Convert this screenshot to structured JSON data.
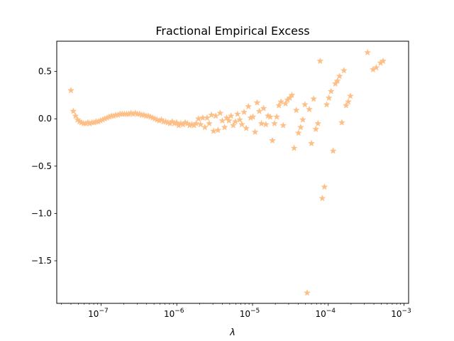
{
  "chart_data": {
    "type": "scatter",
    "title": "Fractional Empirical Excess",
    "xlabel": "λ",
    "ylabel": "",
    "xscale": "log",
    "xlim": [
      2.6e-08,
      0.00115
    ],
    "ylim": [
      -1.95,
      0.82
    ],
    "grid": false,
    "marker": "star",
    "color": "#fdbf86",
    "xticks": [
      {
        "value": 1e-07,
        "label": "10",
        "exp": "−7"
      },
      {
        "value": 1e-06,
        "label": "10",
        "exp": "−6"
      },
      {
        "value": 1e-05,
        "label": "10",
        "exp": "−5"
      },
      {
        "value": 0.0001,
        "label": "10",
        "exp": "−4"
      },
      {
        "value": 0.001,
        "label": "10",
        "exp": "−3"
      }
    ],
    "yticks": [
      {
        "value": 0.5,
        "label": "0.5"
      },
      {
        "value": 0.0,
        "label": "0.0"
      },
      {
        "value": -0.5,
        "label": "−0.5"
      },
      {
        "value": -1.0,
        "label": "−1.0"
      },
      {
        "value": -1.5,
        "label": "−1.5"
      }
    ],
    "points": [
      {
        "x": 4e-08,
        "y": 0.3
      },
      {
        "x": 4.3e-08,
        "y": 0.08
      },
      {
        "x": 4.6e-08,
        "y": 0.03
      },
      {
        "x": 4.9e-08,
        "y": -0.01
      },
      {
        "x": 5.2e-08,
        "y": -0.03
      },
      {
        "x": 5.5e-08,
        "y": -0.04
      },
      {
        "x": 5.9e-08,
        "y": -0.05
      },
      {
        "x": 6.3e-08,
        "y": -0.05
      },
      {
        "x": 6.7e-08,
        "y": -0.04
      },
      {
        "x": 7.1e-08,
        "y": -0.05
      },
      {
        "x": 7.6e-08,
        "y": -0.04
      },
      {
        "x": 8.1e-08,
        "y": -0.04
      },
      {
        "x": 8.6e-08,
        "y": -0.03
      },
      {
        "x": 9.2e-08,
        "y": -0.03
      },
      {
        "x": 9.8e-08,
        "y": -0.02
      },
      {
        "x": 1.05e-07,
        "y": -0.01
      },
      {
        "x": 1.12e-07,
        "y": 0.0
      },
      {
        "x": 1.2e-07,
        "y": 0.01
      },
      {
        "x": 1.28e-07,
        "y": 0.02
      },
      {
        "x": 1.37e-07,
        "y": 0.03
      },
      {
        "x": 1.46e-07,
        "y": 0.03
      },
      {
        "x": 1.56e-07,
        "y": 0.04
      },
      {
        "x": 1.67e-07,
        "y": 0.04
      },
      {
        "x": 1.78e-07,
        "y": 0.05
      },
      {
        "x": 1.9e-07,
        "y": 0.05
      },
      {
        "x": 2.03e-07,
        "y": 0.05
      },
      {
        "x": 2.17e-07,
        "y": 0.05
      },
      {
        "x": 2.32e-07,
        "y": 0.05
      },
      {
        "x": 2.48e-07,
        "y": 0.06
      },
      {
        "x": 2.65e-07,
        "y": 0.05
      },
      {
        "x": 2.83e-07,
        "y": 0.06
      },
      {
        "x": 3.02e-07,
        "y": 0.05
      },
      {
        "x": 3.23e-07,
        "y": 0.05
      },
      {
        "x": 3.45e-07,
        "y": 0.04
      },
      {
        "x": 3.68e-07,
        "y": 0.04
      },
      {
        "x": 3.93e-07,
        "y": 0.03
      },
      {
        "x": 4.2e-07,
        "y": 0.03
      },
      {
        "x": 4.49e-07,
        "y": 0.02
      },
      {
        "x": 4.8e-07,
        "y": 0.01
      },
      {
        "x": 5.13e-07,
        "y": 0.0
      },
      {
        "x": 5.48e-07,
        "y": -0.01
      },
      {
        "x": 5.85e-07,
        "y": -0.02
      },
      {
        "x": 6.25e-07,
        "y": -0.01
      },
      {
        "x": 6.68e-07,
        "y": -0.03
      },
      {
        "x": 7.14e-07,
        "y": -0.03
      },
      {
        "x": 7.62e-07,
        "y": -0.04
      },
      {
        "x": 8.14e-07,
        "y": -0.05
      },
      {
        "x": 8.7e-07,
        "y": -0.03
      },
      {
        "x": 9.3e-07,
        "y": -0.05
      },
      {
        "x": 9.93e-07,
        "y": -0.04
      },
      {
        "x": 1.06e-06,
        "y": -0.07
      },
      {
        "x": 1.13e-06,
        "y": -0.05
      },
      {
        "x": 1.21e-06,
        "y": -0.06
      },
      {
        "x": 1.29e-06,
        "y": -0.04
      },
      {
        "x": 1.38e-06,
        "y": -0.05
      },
      {
        "x": 1.48e-06,
        "y": -0.07
      },
      {
        "x": 1.58e-06,
        "y": -0.06
      },
      {
        "x": 1.69e-06,
        "y": -0.07
      },
      {
        "x": 1.8e-06,
        "y": -0.05
      },
      {
        "x": 1.93e-06,
        "y": 0.0
      },
      {
        "x": 2.06e-06,
        "y": -0.06
      },
      {
        "x": 2.2e-06,
        "y": 0.01
      },
      {
        "x": 2.35e-06,
        "y": -0.09
      },
      {
        "x": 2.51e-06,
        "y": 0.01
      },
      {
        "x": 2.68e-06,
        "y": -0.05
      },
      {
        "x": 2.87e-06,
        "y": 0.04
      },
      {
        "x": 3.06e-06,
        "y": -0.13
      },
      {
        "x": 3.27e-06,
        "y": 0.03
      },
      {
        "x": 3.5e-06,
        "y": -0.12
      },
      {
        "x": 3.74e-06,
        "y": 0.06
      },
      {
        "x": 3.99e-06,
        "y": -0.02
      },
      {
        "x": 4.27e-06,
        "y": -0.09
      },
      {
        "x": 4.56e-06,
        "y": 0.01
      },
      {
        "x": 4.87e-06,
        "y": -0.02
      },
      {
        "x": 5.2e-06,
        "y": 0.03
      },
      {
        "x": 5.56e-06,
        "y": -0.07
      },
      {
        "x": 5.94e-06,
        "y": -0.03
      },
      {
        "x": 6.34e-06,
        "y": 0.05
      },
      {
        "x": 6.78e-06,
        "y": -0.01
      },
      {
        "x": 7.24e-06,
        "y": -0.06
      },
      {
        "x": 7.73e-06,
        "y": 0.07
      },
      {
        "x": 8.26e-06,
        "y": -0.1
      },
      {
        "x": 8.82e-06,
        "y": 0.13
      },
      {
        "x": 9.43e-06,
        "y": 0.01
      },
      {
        "x": 1.01e-05,
        "y": 0.02
      },
      {
        "x": 1.08e-05,
        "y": -0.14
      },
      {
        "x": 1.15e-05,
        "y": 0.17
      },
      {
        "x": 1.23e-05,
        "y": 0.08
      },
      {
        "x": 1.31e-05,
        "y": -0.05
      },
      {
        "x": 1.4e-05,
        "y": 0.11
      },
      {
        "x": 1.5e-05,
        "y": -0.06
      },
      {
        "x": 1.6e-05,
        "y": 0.03
      },
      {
        "x": 1.71e-05,
        "y": 0.02
      },
      {
        "x": 1.83e-05,
        "y": -0.23
      },
      {
        "x": 1.95e-05,
        "y": -0.05
      },
      {
        "x": 2.09e-05,
        "y": 0.02
      },
      {
        "x": 2.23e-05,
        "y": 0.14
      },
      {
        "x": 2.38e-05,
        "y": 0.18
      },
      {
        "x": 2.54e-05,
        "y": -0.07
      },
      {
        "x": 2.72e-05,
        "y": 0.16
      },
      {
        "x": 2.9e-05,
        "y": 0.2
      },
      {
        "x": 3.1e-05,
        "y": 0.22
      },
      {
        "x": 3.31e-05,
        "y": 0.25
      },
      {
        "x": 3.54e-05,
        "y": -0.31
      },
      {
        "x": 3.78e-05,
        "y": 0.09
      },
      {
        "x": 4.04e-05,
        "y": -0.15
      },
      {
        "x": 4.32e-05,
        "y": -0.09
      },
      {
        "x": 4.61e-05,
        "y": -0.01
      },
      {
        "x": 4.92e-05,
        "y": 0.15
      },
      {
        "x": 5.26e-05,
        "y": -1.84
      },
      {
        "x": 5.62e-05,
        "y": 0.1
      },
      {
        "x": 6e-05,
        "y": -0.26
      },
      {
        "x": 6.41e-05,
        "y": 0.21
      },
      {
        "x": 6.84e-05,
        "y": -0.11
      },
      {
        "x": 7.31e-05,
        "y": -0.05
      },
      {
        "x": 7.81e-05,
        "y": 0.61
      },
      {
        "x": 8.34e-05,
        "y": -0.84
      },
      {
        "x": 8.91e-05,
        "y": -0.72
      },
      {
        "x": 9.52e-05,
        "y": 0.15
      },
      {
        "x": 0.000102,
        "y": 0.22
      },
      {
        "x": 0.000109,
        "y": 0.29
      },
      {
        "x": 0.000116,
        "y": -0.34
      },
      {
        "x": 0.000124,
        "y": 0.37
      },
      {
        "x": 0.000132,
        "y": 0.4
      },
      {
        "x": 0.000141,
        "y": 0.45
      },
      {
        "x": 0.000151,
        "y": -0.04
      },
      {
        "x": 0.000161,
        "y": 0.51
      },
      {
        "x": 0.000172,
        "y": 0.14
      },
      {
        "x": 0.000184,
        "y": 0.18
      },
      {
        "x": 0.000196,
        "y": 0.24
      },
      {
        "x": 0.00033,
        "y": 0.7
      },
      {
        "x": 0.00039,
        "y": 0.52
      },
      {
        "x": 0.00043,
        "y": 0.54
      },
      {
        "x": 0.00049,
        "y": 0.59
      },
      {
        "x": 0.00053,
        "y": 0.61
      }
    ]
  }
}
